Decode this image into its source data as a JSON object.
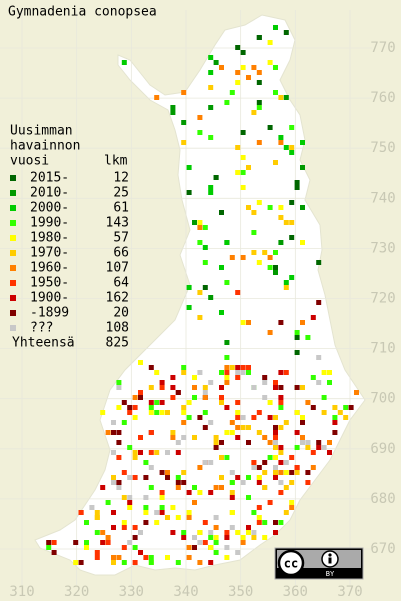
{
  "title": "Gymnadenia conopsea",
  "legend": {
    "heading": [
      "Uusimman",
      "havainnon"
    ],
    "col1": "vuosi",
    "col2": "lkm",
    "rows": [
      {
        "label": "2015-",
        "count": 12,
        "color": "#006600"
      },
      {
        "label": "2010-",
        "count": 25,
        "color": "#009900"
      },
      {
        "label": "2000-",
        "count": 61,
        "color": "#00cc00"
      },
      {
        "label": "1990-",
        "count": 143,
        "color": "#33ff00"
      },
      {
        "label": "1980-",
        "count": 57,
        "color": "#ffff00"
      },
      {
        "label": "1970-",
        "count": 66,
        "color": "#ffcc00"
      },
      {
        "label": "1960-",
        "count": 107,
        "color": "#ff8000"
      },
      {
        "label": "1950-",
        "count": 64,
        "color": "#ff3300"
      },
      {
        "label": "1900-",
        "count": 162,
        "color": "#cc0000"
      },
      {
        "label": "-1899",
        "count": 20,
        "color": "#800000"
      },
      {
        "label": "???",
        "count": 108,
        "color": "#c8c8c8"
      }
    ],
    "total": {
      "label": "Yhteensä",
      "count": 825
    }
  },
  "axes": {
    "xticks": [
      310,
      320,
      330,
      340,
      350,
      360,
      370
    ],
    "yticks": [
      670,
      680,
      690,
      700,
      710,
      720,
      730,
      740,
      750,
      760,
      770
    ]
  },
  "license": {
    "cc": "cc",
    "by": "BY"
  }
}
